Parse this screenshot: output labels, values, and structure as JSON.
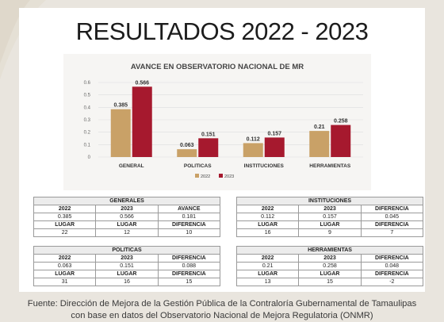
{
  "slide": {
    "title": "RESULTADOS 2022 - 2023"
  },
  "chart_data": {
    "type": "bar",
    "title": "AVANCE EN OBSERVATORIO NACIONAL DE MR",
    "categories": [
      "GENERAL",
      "POLITICAS",
      "INSTITUCIONES",
      "HERRAMIENTAS"
    ],
    "series": [
      {
        "name": "2022",
        "values": [
          0.385,
          0.063,
          0.112,
          0.21
        ],
        "labels": [
          "0.385",
          "0.063",
          "0.112",
          "0.21"
        ],
        "color": "#c9a167"
      },
      {
        "name": "2023",
        "values": [
          0.566,
          0.151,
          0.157,
          0.258
        ],
        "labels": [
          "0.566",
          "0.151",
          "0.157",
          "0.258"
        ],
        "color": "#a6192e"
      }
    ],
    "ylim": [
      0,
      0.6
    ],
    "yticks": [
      "0",
      "0.1",
      "0.2",
      "0.3",
      "0.4",
      "0.5",
      "0.6"
    ],
    "grid": true,
    "legend": "bottom-center"
  },
  "tables": {
    "generales": {
      "title": "GENERALES",
      "row1": [
        "2022",
        "2023",
        "AVANCE"
      ],
      "row2": [
        "0.385",
        "0.566",
        "0.181"
      ],
      "row3": [
        "LUGAR",
        "LUGAR",
        "DIFERENCIA"
      ],
      "row4": [
        "22",
        "12",
        "10"
      ]
    },
    "instituciones": {
      "title": "INSTITUCIONES",
      "row1": [
        "2022",
        "2023",
        "DIFERENCIA"
      ],
      "row2": [
        "0.112",
        "0.157",
        "0.045"
      ],
      "row3": [
        "LUGAR",
        "LUGAR",
        "DIFERENCIA"
      ],
      "row4": [
        "16",
        "9",
        "7"
      ]
    },
    "politicas": {
      "title": "POLITICAS",
      "row1": [
        "2022",
        "2023",
        "DIFERENCIA"
      ],
      "row2": [
        "0.063",
        "0.151",
        "0.088"
      ],
      "row3": [
        "LUGAR",
        "LUGAR",
        "DIFERENCIA"
      ],
      "row4": [
        "31",
        "16",
        "15"
      ]
    },
    "herramientas": {
      "title": "HERRAMIENTAS",
      "row1": [
        "2022",
        "2023",
        "DIFERENCIA"
      ],
      "row2": [
        "0.21",
        "0.258",
        "0.048"
      ],
      "row3": [
        "LUGAR",
        "LUGAR",
        "DIFERENCIA"
      ],
      "row4": [
        "13",
        "15",
        "-2"
      ]
    }
  },
  "source": {
    "line1": "Fuente: Dirección de Mejora de la Gestión Pública de la Contraloría Gubernamental de Tamaulipas",
    "line2": "con base en datos del Observatorio Nacional de Mejora Regulatoria (ONMR)"
  }
}
